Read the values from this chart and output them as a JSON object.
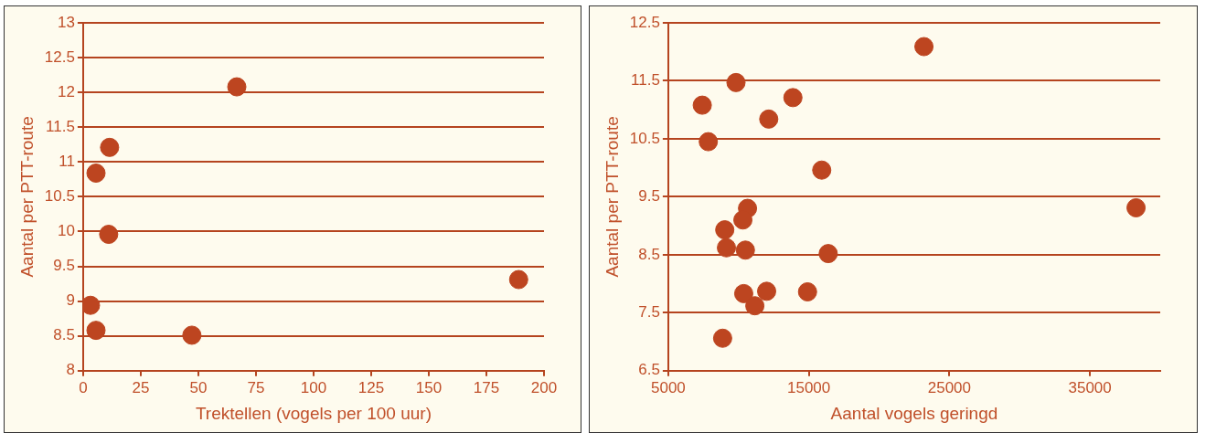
{
  "chart_data": [
    {
      "type": "scatter",
      "xlabel": "Trektellen (vogels per 100 uur)",
      "ylabel": "Aantal per PTT-route",
      "color": "#bd4520",
      "marker": "circle",
      "grid": "y",
      "x": [
        66.7,
        11.5,
        5.6,
        11.1,
        189,
        3.2,
        5.6,
        47.2
      ],
      "values": [
        12.08,
        11.21,
        10.84,
        9.96,
        9.31,
        8.94,
        8.58,
        8.51
      ],
      "xlim": [
        0,
        200
      ],
      "xticks": [
        0,
        25,
        50,
        75,
        100,
        125,
        150,
        175,
        200
      ],
      "ylim": [
        8,
        13
      ],
      "yticks": [
        8,
        8.5,
        9,
        9.5,
        10,
        10.5,
        11,
        11.5,
        12,
        12.5,
        13
      ]
    },
    {
      "type": "scatter",
      "xlabel": "Aantal vogels geringd",
      "ylabel": "Aantal per PTT-route",
      "color": "#bd4520",
      "marker": "circle",
      "grid": "y",
      "x": [
        23190,
        9820,
        7420,
        13870,
        12150,
        7850,
        15920,
        38280,
        10640,
        10310,
        9020,
        9140,
        10490,
        16380,
        10370,
        12000,
        14910,
        11160,
        8870
      ],
      "values": [
        12.09,
        11.47,
        11.08,
        11.21,
        10.84,
        10.45,
        9.96,
        9.31,
        9.3,
        9.1,
        8.93,
        8.62,
        8.58,
        8.52,
        7.83,
        7.87,
        7.86,
        7.62,
        7.06
      ],
      "xlim": [
        5000,
        40000
      ],
      "xticks": [
        5000,
        15000,
        25000,
        35000
      ],
      "ylim": [
        6.5,
        12.5
      ],
      "yticks": [
        6.5,
        7.5,
        8.5,
        9.5,
        10.5,
        11.5,
        12.5
      ]
    }
  ]
}
